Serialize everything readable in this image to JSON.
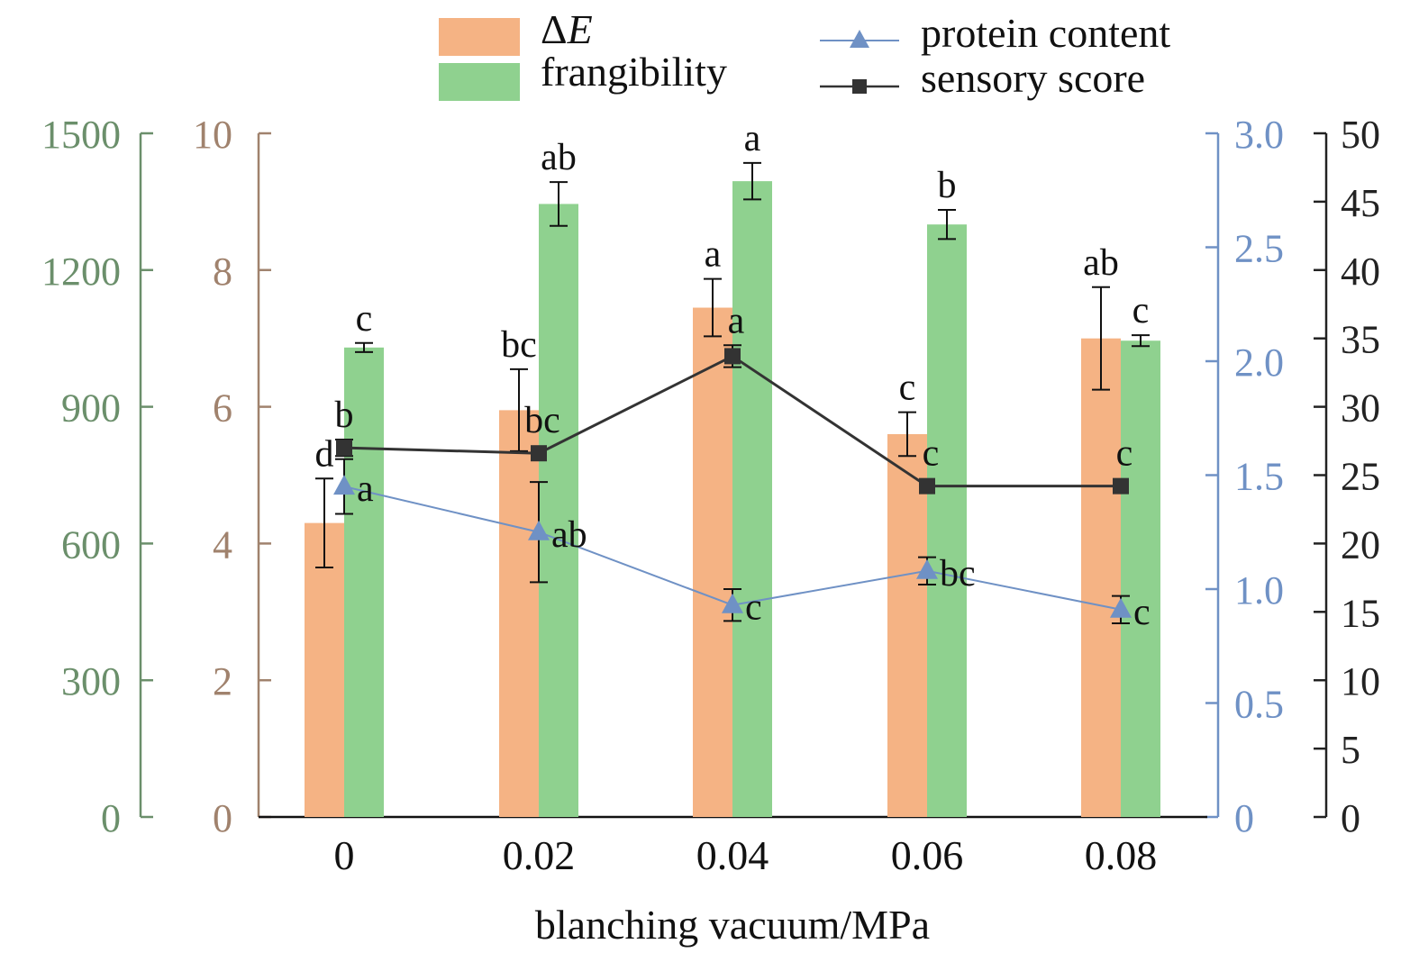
{
  "chart_data": {
    "type": "bar",
    "categories": [
      "0",
      "0.02",
      "0.04",
      "0.06",
      "0.08"
    ],
    "xlabel": "blanching vacuum/MPa",
    "axes": {
      "frangibility": {
        "ticks": [
          "0",
          "300",
          "600",
          "900",
          "1200",
          "1500"
        ],
        "ylim": [
          0,
          1500
        ],
        "color": "#6b8f6b"
      },
      "delta_e": {
        "ticks": [
          "0",
          "2",
          "4",
          "6",
          "8",
          "10"
        ],
        "ylim": [
          0,
          10
        ],
        "color": "#a0826d"
      },
      "protein": {
        "ticks": [
          "0",
          "0.5",
          "1.0",
          "1.5",
          "2.0",
          "2.5",
          "3.0"
        ],
        "ylim": [
          0,
          3.0
        ],
        "color": "#6f91c5"
      },
      "sensory": {
        "ticks": [
          "0",
          "5",
          "10",
          "15",
          "20",
          "25",
          "30",
          "35",
          "40",
          "45",
          "50"
        ],
        "ylim": [
          0,
          50
        ],
        "color": "#222222"
      }
    },
    "legend": {
      "delta_e_symbol": "Δ",
      "delta_e_var": "E",
      "frangibility": "frangibility",
      "protein": "protein content",
      "sensory": "sensory score"
    },
    "series": [
      {
        "key": "delta_e",
        "kind": "bar",
        "axis": "delta_e",
        "color": "#f5b384",
        "values": [
          4.3,
          5.95,
          7.45,
          5.6,
          7.0
        ],
        "errors": [
          0.65,
          0.6,
          0.42,
          0.32,
          0.75
        ],
        "labels": [
          "d",
          "bc",
          "a",
          "c",
          "ab"
        ]
      },
      {
        "key": "frangibility",
        "kind": "bar",
        "axis": "frangibility",
        "color": "#8fd18f",
        "values": [
          1030,
          1345,
          1395,
          1300,
          1045
        ],
        "errors": [
          10,
          48,
          40,
          32,
          12
        ],
        "labels": [
          "c",
          "ab",
          "a",
          "b",
          "c"
        ]
      },
      {
        "key": "protein",
        "kind": "line",
        "axis": "protein",
        "color": "#6f91c5",
        "values": [
          1.45,
          1.25,
          0.93,
          1.08,
          0.91
        ],
        "errors": [
          0.12,
          0.22,
          0.07,
          0.06,
          0.06
        ],
        "labels": [
          "a",
          "ab",
          "c",
          "bc",
          "c"
        ]
      },
      {
        "key": "sensory",
        "kind": "line",
        "axis": "sensory",
        "color": "#333333",
        "values": [
          27,
          26.6,
          33.7,
          24.2,
          24.2
        ],
        "errors": [
          0.6,
          0.0,
          0.8,
          0.0,
          0.0
        ],
        "labels": [
          "b",
          "bc",
          "a",
          "c",
          "c"
        ]
      }
    ]
  }
}
